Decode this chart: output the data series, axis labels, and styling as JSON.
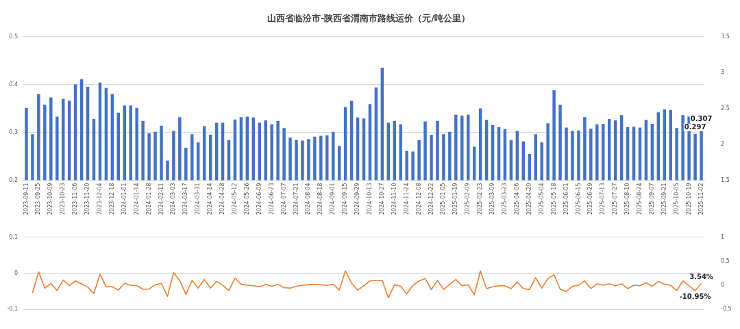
{
  "chart_data": [
    {
      "type": "bar",
      "title": "山西省临汾市-陕西省渭南市路线运价（元/吨公里）",
      "categories": [
        "2023-09-11",
        null,
        "2023-09-25",
        null,
        "2023-10-09",
        null,
        "2023-10-23",
        null,
        "2023-11-06",
        null,
        "2023-11-20",
        null,
        "2023-12-04",
        null,
        "2023-12-18",
        null,
        "2024-01-01",
        null,
        "2024-01-14",
        null,
        "2024-01-28",
        null,
        "2024-02-11",
        null,
        "2024-03-03",
        null,
        "2024-03-17",
        null,
        "2024-03-31",
        null,
        "2024-04-14",
        null,
        "2024-04-28",
        null,
        "2024-05-12",
        null,
        "2024-05-26",
        null,
        "2024-06-09",
        null,
        "2024-06-23",
        null,
        "2024-07-07",
        null,
        "2024-07-21",
        null,
        "2024-08-04",
        null,
        "2024-08-18",
        null,
        "2024-09-01",
        null,
        "2024-09-15",
        null,
        "2024-09-29",
        null,
        "2024-10-13",
        null,
        "2024-10-27",
        null,
        "2024-11-10",
        null,
        "2024-11-24",
        null,
        "2024-12-08",
        null,
        "2024-12-22",
        null,
        "2025-01-05",
        null,
        "2025-01-19",
        null,
        "2025-02-09",
        null,
        "2025-02-23",
        null,
        "2025-03-09",
        null,
        "2025-03-23",
        null,
        "2025-04-06",
        null,
        "2025-04-20",
        null,
        "2025-05-04",
        null,
        "2025-05-18",
        null,
        "2025-06-01",
        null,
        "2025-06-15",
        null,
        "2025-06-29",
        null,
        "2025-07-13",
        null,
        "2025-07-27",
        null,
        "2025-08-10",
        null,
        "2025-08-24",
        null,
        "2025-09-07",
        null,
        "2025-09-21",
        null,
        "2025-10-05",
        null,
        "2025-10-19",
        null,
        "2025-11-02"
      ],
      "series": [
        {
          "color": "#4472c4",
          "values": [
            0.351,
            0.296,
            0.38,
            0.358,
            0.373,
            0.333,
            0.37,
            0.366,
            0.4,
            0.411,
            0.395,
            0.328,
            0.404,
            0.393,
            0.38,
            0.341,
            0.356,
            0.356,
            0.351,
            0.324,
            0.298,
            0.301,
            0.314,
            0.241,
            0.303,
            0.332,
            0.268,
            0.296,
            0.279,
            0.313,
            0.295,
            0.32,
            0.32,
            0.284,
            0.327,
            0.332,
            0.333,
            0.331,
            0.32,
            0.325,
            0.317,
            0.324,
            0.309,
            0.289,
            0.284,
            0.283,
            0.286,
            0.291,
            0.293,
            0.294,
            0.301,
            0.272,
            0.353,
            0.366,
            0.331,
            0.329,
            0.359,
            0.394,
            0.435,
            0.32,
            0.324,
            0.317,
            0.261,
            0.26,
            0.284,
            0.323,
            0.295,
            0.324,
            0.296,
            0.301,
            0.337,
            0.335,
            0.337,
            0.27,
            0.35,
            0.326,
            0.315,
            0.311,
            0.307,
            0.284,
            0.303,
            0.281,
            0.255,
            0.296,
            0.279,
            0.319,
            0.388,
            0.358,
            0.31,
            0.303,
            0.304,
            0.332,
            0.308,
            0.317,
            0.318,
            0.328,
            0.325,
            0.336,
            0.311,
            0.312,
            0.31,
            0.326,
            0.318,
            0.342,
            0.348,
            0.347,
            0.309,
            0.336,
            0.333,
            0.297,
            0.307
          ],
          "value_labels": [
            null,
            null,
            null,
            null,
            null,
            null,
            null,
            null,
            null,
            null,
            null,
            null,
            null,
            null,
            null,
            null,
            null,
            null,
            null,
            null,
            null,
            null,
            null,
            null,
            null,
            null,
            null,
            null,
            null,
            null,
            null,
            null,
            null,
            null,
            null,
            null,
            null,
            null,
            null,
            null,
            null,
            null,
            null,
            null,
            null,
            null,
            null,
            null,
            null,
            null,
            null,
            null,
            null,
            null,
            null,
            null,
            null,
            null,
            null,
            null,
            null,
            null,
            null,
            null,
            null,
            null,
            null,
            null,
            null,
            null,
            null,
            null,
            null,
            null,
            null,
            null,
            null,
            null,
            null,
            null,
            null,
            null,
            null,
            null,
            null,
            null,
            null,
            null,
            null,
            null,
            null,
            null,
            null,
            null,
            null,
            null,
            null,
            null,
            null,
            null,
            null,
            null,
            null,
            null,
            null,
            null,
            null,
            null,
            null,
            "0.297",
            "0.307"
          ]
        }
      ],
      "ylim": [
        0.2,
        0.5
      ],
      "yticks": [
        0.2,
        0.3,
        0.4,
        0.5
      ],
      "y2lim": [
        1.5,
        3.5
      ],
      "y2ticks": [
        1.5,
        2,
        2.5,
        3,
        3.5
      ],
      "grid": "y",
      "legend": false
    },
    {
      "type": "line",
      "categories": [
        "2023-09-11",
        null,
        "2023-09-25",
        null,
        "2023-10-09",
        null,
        "2023-10-23",
        null,
        "2023-11-06",
        null,
        "2023-11-20",
        null,
        "2023-12-04",
        null,
        "2023-12-18",
        null,
        "2024-01-01",
        null,
        "2024-01-14",
        null,
        "2024-01-28",
        null,
        "2024-02-11",
        null,
        "2024-03-03",
        null,
        "2024-03-17",
        null,
        "2024-03-31",
        null,
        "2024-04-14",
        null,
        "2024-04-28",
        null,
        "2024-05-12",
        null,
        "2024-05-26",
        null,
        "2024-06-09",
        null,
        "2024-06-23",
        null,
        "2024-07-07",
        null,
        "2024-07-21",
        null,
        "2024-08-04",
        null,
        "2024-08-18",
        null,
        "2024-09-01",
        null,
        "2024-09-15",
        null,
        "2024-09-29",
        null,
        "2024-10-13",
        null,
        "2024-10-27",
        null,
        "2024-11-10",
        null,
        "2024-11-24",
        null,
        "2024-12-08",
        null,
        "2024-12-22",
        null,
        "2025-01-05",
        null,
        "2025-01-19",
        null,
        "2025-02-09",
        null,
        "2025-02-23",
        null,
        "2025-03-09",
        null,
        "2025-03-23",
        null,
        "2025-04-06",
        null,
        "2025-04-20",
        null,
        "2025-05-04",
        null,
        "2025-05-18",
        null,
        "2025-06-01",
        null,
        "2025-06-15",
        null,
        "2025-06-29",
        null,
        "2025-07-13",
        null,
        "2025-07-27",
        null,
        "2025-08-10",
        null,
        "2025-08-24",
        null,
        "2025-09-07",
        null,
        "2025-09-21",
        null,
        "2025-10-05",
        null,
        "2025-10-19",
        null,
        "2025-11-02"
      ],
      "series": [
        {
          "color": "#ed7d31",
          "axis": "y2",
          "values": [
            null,
            -0.16,
            0.28,
            -0.06,
            0.04,
            -0.11,
            0.11,
            -0.01,
            0.09,
            0.03,
            -0.04,
            -0.17,
            0.23,
            -0.03,
            -0.03,
            -0.1,
            0.04,
            0.0,
            -0.01,
            -0.08,
            -0.08,
            0.01,
            0.04,
            -0.23,
            0.26,
            0.1,
            -0.19,
            0.1,
            -0.06,
            0.12,
            -0.06,
            0.08,
            0.0,
            -0.11,
            0.15,
            0.02,
            0.0,
            -0.01,
            -0.03,
            0.02,
            -0.02,
            0.02,
            -0.05,
            -0.06,
            -0.02,
            0.0,
            0.01,
            0.02,
            0.01,
            0.0,
            0.02,
            -0.1,
            0.3,
            0.04,
            -0.1,
            -0.01,
            0.09,
            0.1,
            0.1,
            -0.26,
            0.01,
            -0.02,
            -0.18,
            0.0,
            0.09,
            0.14,
            -0.09,
            0.1,
            -0.09,
            0.02,
            0.12,
            -0.01,
            0.01,
            -0.2,
            0.3,
            -0.07,
            -0.03,
            -0.01,
            -0.01,
            -0.07,
            0.07,
            -0.07,
            -0.09,
            0.16,
            -0.06,
            0.14,
            0.22,
            -0.08,
            -0.13,
            -0.02,
            0.0,
            0.09,
            -0.07,
            0.03,
            0.0,
            0.03,
            -0.01,
            0.03,
            -0.07,
            0.0,
            -0.01,
            0.05,
            -0.02,
            0.08,
            0.02,
            0.0,
            -0.11,
            0.09,
            -0.01,
            -0.1095,
            0.0354
          ],
          "value_labels": [
            null,
            null,
            null,
            null,
            null,
            null,
            null,
            null,
            null,
            null,
            null,
            null,
            null,
            null,
            null,
            null,
            null,
            null,
            null,
            null,
            null,
            null,
            null,
            null,
            null,
            null,
            null,
            null,
            null,
            null,
            null,
            null,
            null,
            null,
            null,
            null,
            null,
            null,
            null,
            null,
            null,
            null,
            null,
            null,
            null,
            null,
            null,
            null,
            null,
            null,
            null,
            null,
            null,
            null,
            null,
            null,
            null,
            null,
            null,
            null,
            null,
            null,
            null,
            null,
            null,
            null,
            null,
            null,
            null,
            null,
            null,
            null,
            null,
            null,
            null,
            null,
            null,
            null,
            null,
            null,
            null,
            null,
            null,
            null,
            null,
            null,
            null,
            null,
            null,
            null,
            null,
            null,
            null,
            null,
            null,
            null,
            null,
            null,
            null,
            null,
            null,
            null,
            null,
            null,
            null,
            null,
            null,
            null,
            null,
            "-10.95%",
            "3.54%"
          ]
        }
      ],
      "ylim": [
        -0.1,
        0.1
      ],
      "yticks": [
        -0.1,
        0,
        0.1
      ],
      "y2lim": [
        -0.5,
        1
      ],
      "y2ticks": [
        -0.5,
        0,
        0.5,
        1
      ],
      "grid": "y",
      "legend": false,
      "tick_labels": "y",
      "marker": "none",
      "line_style": "solid"
    }
  ]
}
